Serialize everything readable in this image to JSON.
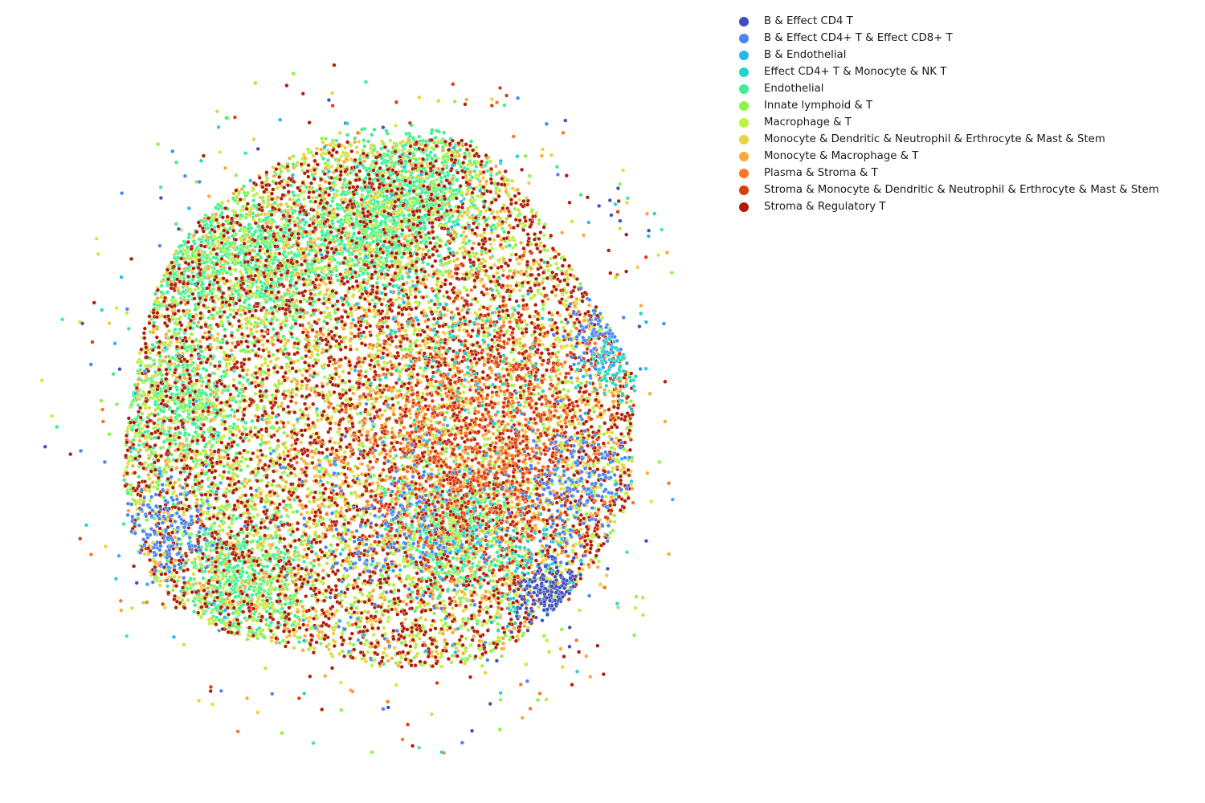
{
  "chart_data": {
    "type": "scatter",
    "title": "",
    "xlabel": "",
    "ylabel": "",
    "axes_visible": false,
    "grid": false,
    "legend_placement": "top-right",
    "marker": "small filled circle with white edge",
    "series": [
      {
        "name": "B & Effect CD4 T",
        "color": "#3f4fbf",
        "region": "right and lower-right edge",
        "count": 180
      },
      {
        "name": "B & Effect CD4+ T & Effect CD8+ T",
        "color": "#4886f5",
        "region": "right edge and scattered",
        "count": 650
      },
      {
        "name": "B & Endothelial",
        "color": "#29b6f0",
        "region": "scattered",
        "count": 130
      },
      {
        "name": "Effect CD4+ T & Monocyte & NK T",
        "color": "#1fd6c9",
        "region": "right edge and lower region",
        "count": 300
      },
      {
        "name": "Endothelial",
        "color": "#3cf08e",
        "region": "left and upper-center clusters",
        "count": 4200
      },
      {
        "name": "Innate lymphoid & T",
        "color": "#8af545",
        "region": "widespread",
        "count": 1600
      },
      {
        "name": "Macrophage & T",
        "color": "#bff23a",
        "region": "widespread",
        "count": 1500
      },
      {
        "name": "Monocyte & Dendritic & Neutrophil & Erthrocyte & Mast & Stem",
        "color": "#ebd13d",
        "region": "widespread",
        "count": 2500
      },
      {
        "name": "Monocyte & Macrophage & T",
        "color": "#fba93a",
        "region": "widespread",
        "count": 1100
      },
      {
        "name": "Plasma & Stroma & T",
        "color": "#fb7624",
        "region": "center-right",
        "count": 600
      },
      {
        "name": "Stroma & Monocyte & Dendritic & Neutrophil & Erthrocyte & Mast & Stem",
        "color": "#db3d0c",
        "region": "center-right",
        "count": 700
      },
      {
        "name": "Stroma & Regulatory T",
        "color": "#b11c08",
        "region": "widespread",
        "count": 3800
      }
    ]
  }
}
